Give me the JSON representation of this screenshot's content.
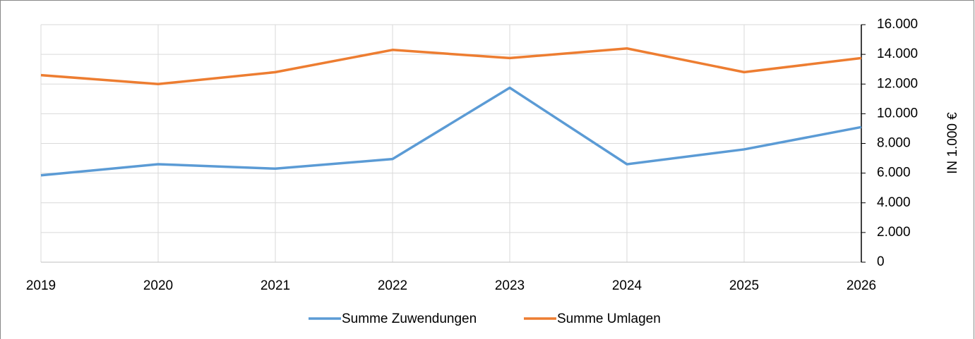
{
  "chart_data": {
    "type": "line",
    "categories": [
      "2019",
      "2020",
      "2021",
      "2022",
      "2023",
      "2024",
      "2025",
      "2026"
    ],
    "series": [
      {
        "name": "Summe Zuwendungen",
        "color": "#5b9bd5",
        "values": [
          5850,
          6600,
          6300,
          6950,
          11750,
          6600,
          7600,
          9100
        ]
      },
      {
        "name": "Summe Umlagen",
        "color": "#ed7d31",
        "values": [
          12600,
          12000,
          12800,
          14300,
          13750,
          14400,
          12800,
          13750
        ]
      }
    ],
    "y_axis_label": "IN 1.000 €",
    "ylim": [
      0,
      16000
    ],
    "yticks": [
      0,
      {
        "value": 2000,
        "label": "2.000"
      },
      {
        "value": 4000,
        "label": "4.000"
      },
      {
        "value": 6000,
        "label": "6.000"
      },
      {
        "value": 8000,
        "label": "8.000"
      },
      {
        "value": 10000,
        "label": "10.000"
      },
      {
        "value": 12000,
        "label": "12.000"
      },
      {
        "value": 14000,
        "label": "14.000"
      },
      {
        "value": 16000,
        "label": "16.000"
      }
    ],
    "grid": true,
    "legend": "bottom"
  }
}
